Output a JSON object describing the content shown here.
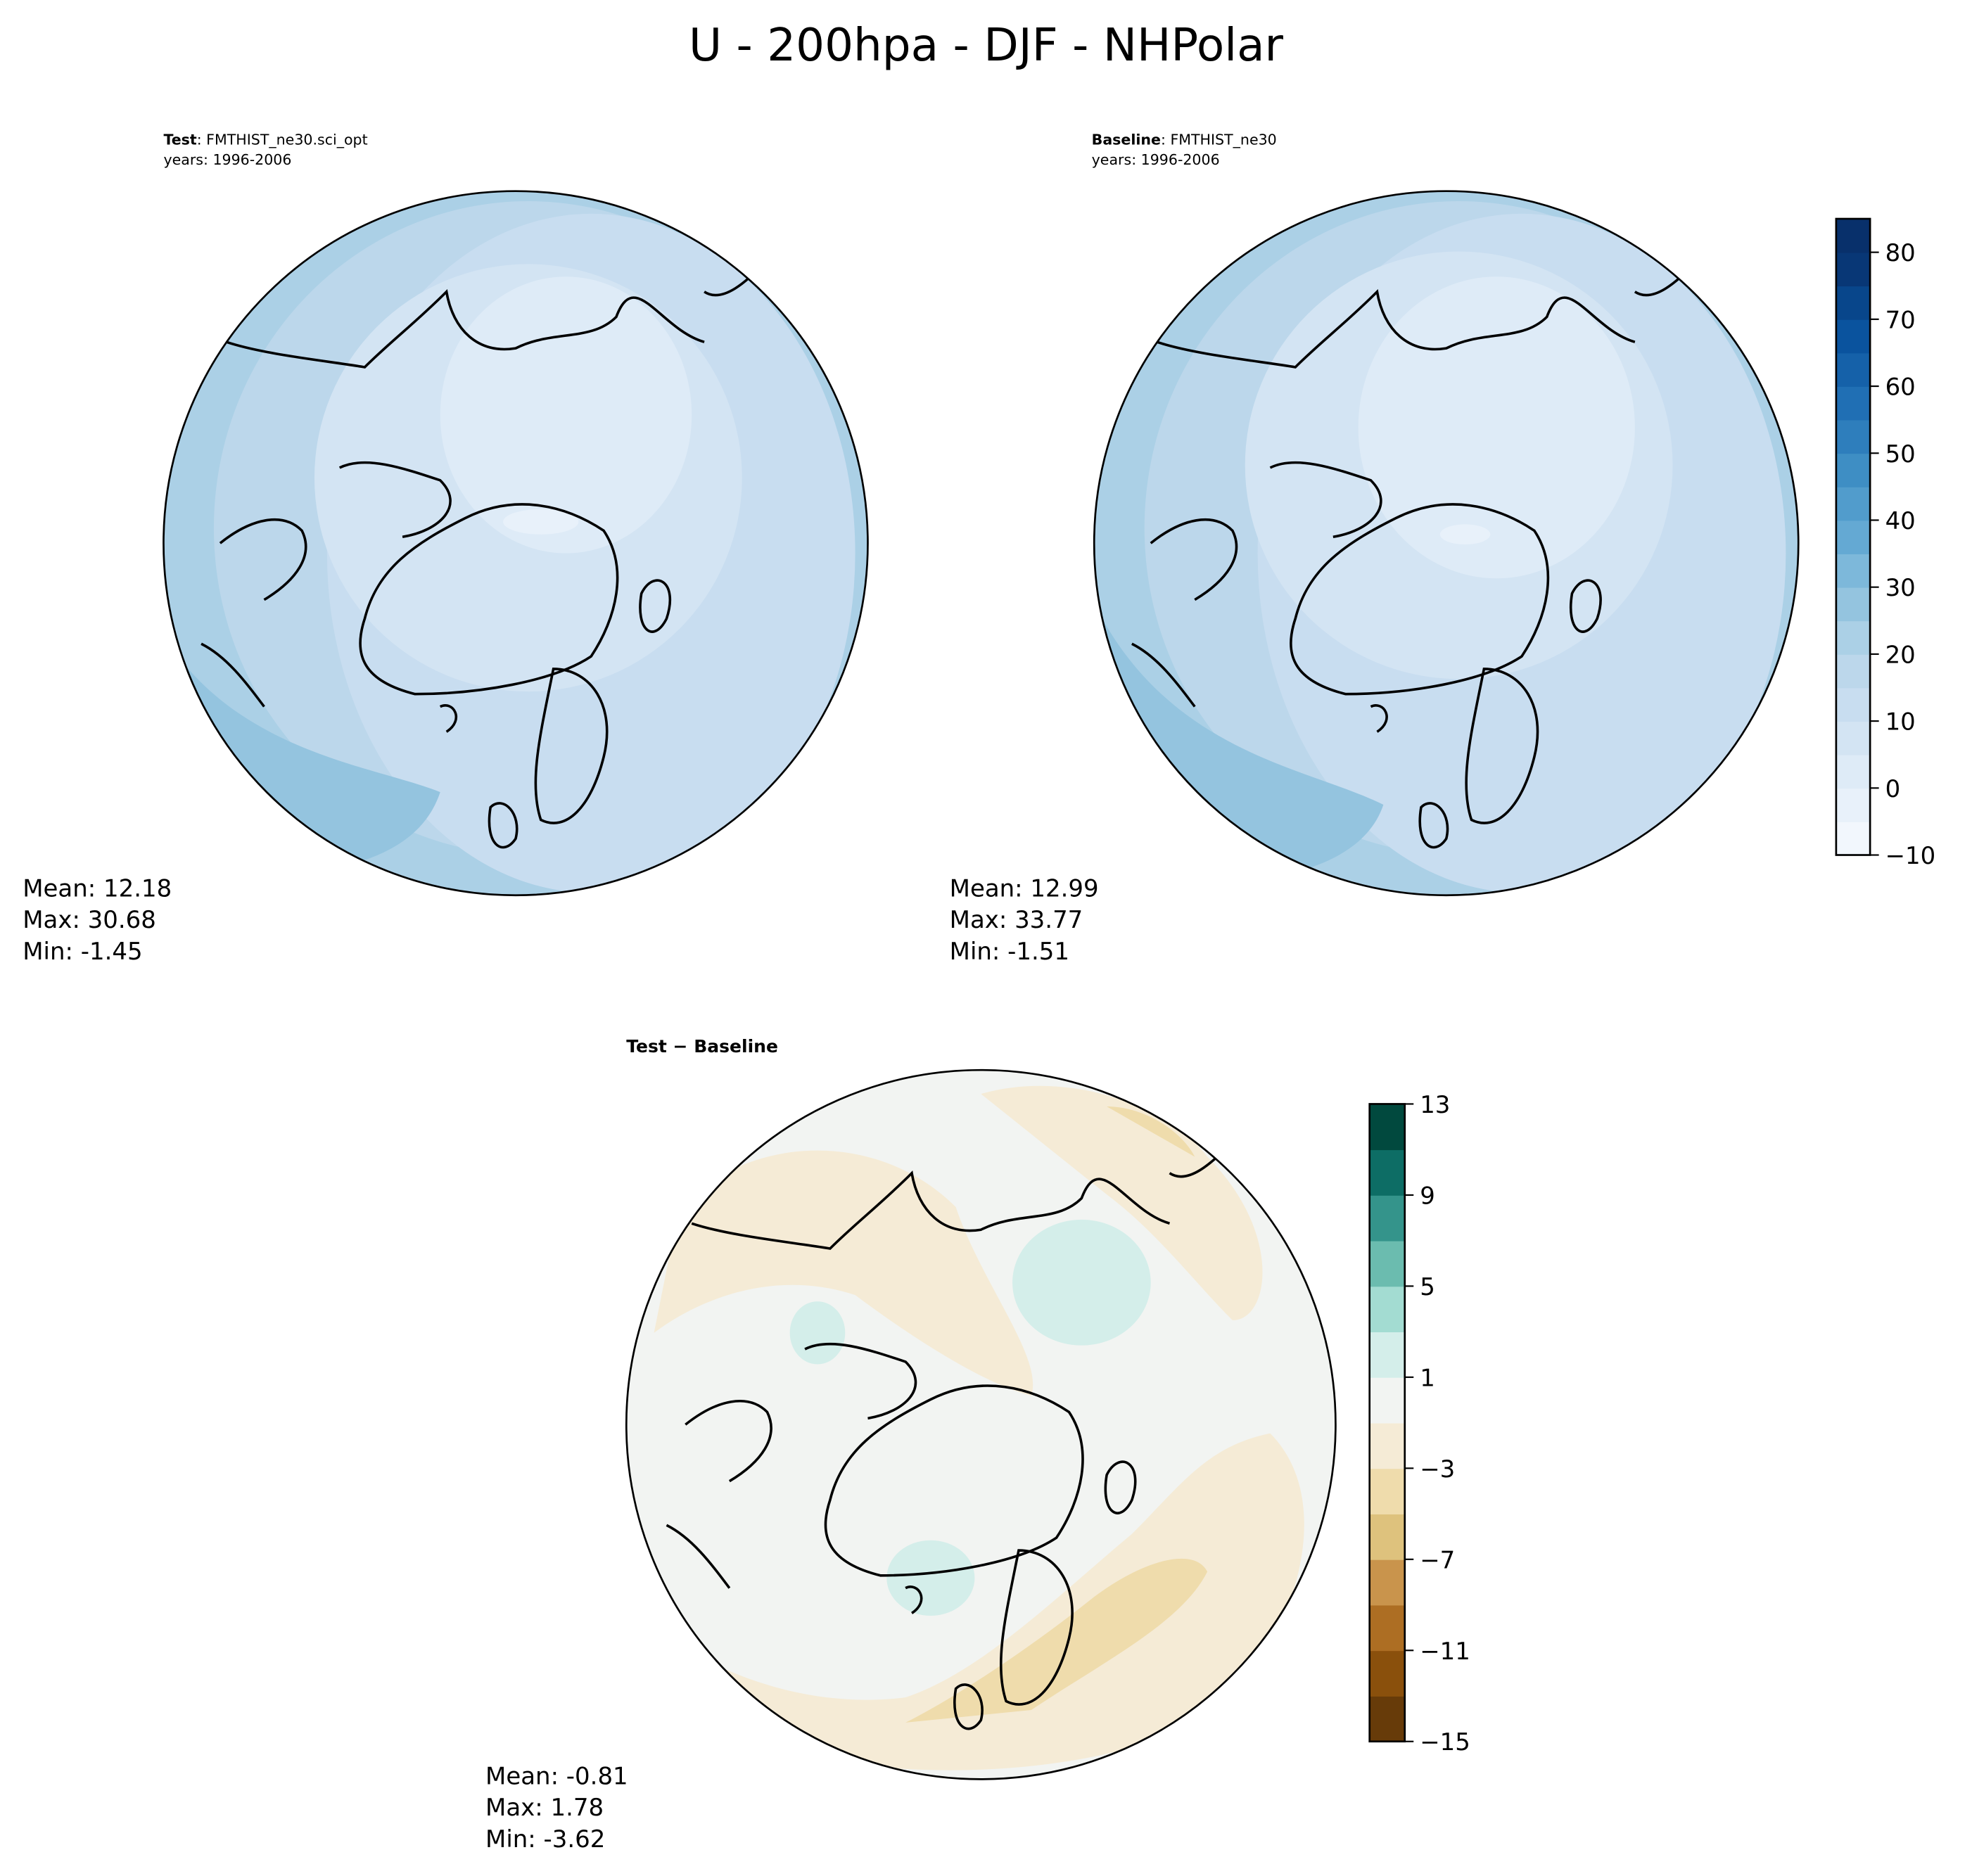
{
  "chart_data": {
    "title": "U - 200hpa - DJF - NHPolar",
    "panels": [
      {
        "type": "map-contour",
        "projection": "north-polar-stereographic",
        "title_bold": "Test",
        "title_rest": ": FMTHIST_ne30.sci_opt",
        "subtitle": "years: 1996-2006",
        "stats": {
          "mean": "Mean: 12.18",
          "max": "Max: 30.68",
          "min": "Min: -1.45"
        }
      },
      {
        "type": "map-contour",
        "projection": "north-polar-stereographic",
        "title_bold": "Baseline",
        "title_rest": ": FMTHIST_ne30",
        "subtitle": "years: 1996-2006",
        "stats": {
          "mean": "Mean: 12.99",
          "max": "Max: 33.77",
          "min": "Min: -1.51"
        }
      },
      {
        "type": "map-contour",
        "projection": "north-polar-stereographic",
        "title_bold": "Test − Baseline",
        "title_rest": "",
        "subtitle": "",
        "stats": {
          "mean": "Mean: -0.81",
          "max": "Max:  1.78",
          "min": "Min: -3.62"
        }
      }
    ],
    "colorbars": [
      {
        "colormap": "Blues",
        "range": [
          -10,
          85
        ],
        "step": 5,
        "ticks": [
          -10,
          0,
          10,
          20,
          30,
          40,
          50,
          60,
          70,
          80
        ],
        "tick_labels": [
          "−10",
          "0",
          "10",
          "20",
          "30",
          "40",
          "50",
          "60",
          "70",
          "80"
        ],
        "colors": [
          "#f2f7fd",
          "#e8f1fa",
          "#deebf7",
          "#d3e4f3",
          "#c8ddf0",
          "#bcd7eb",
          "#abd0e6",
          "#94c4df",
          "#7db8da",
          "#64a9d3",
          "#519ccc",
          "#3e8ec4",
          "#2e7ebc",
          "#206fb4",
          "#1561a9",
          "#0a539e",
          "#08468b",
          "#083776",
          "#08306b"
        ]
      },
      {
        "colormap": "BrBG",
        "range": [
          -15,
          13
        ],
        "step": 2,
        "ticks": [
          -15,
          -11,
          -7,
          -3,
          1,
          5,
          9,
          13
        ],
        "tick_labels": [
          "−15",
          "−11",
          "−7",
          "−3",
          "1",
          "5",
          "9",
          "13"
        ],
        "colors": [
          "#673b09",
          "#8a500c",
          "#ad6e23",
          "#c9944c",
          "#dec27d",
          "#efdcac",
          "#f5ebd6",
          "#f2f4f2",
          "#d4eeea",
          "#a3dcd2",
          "#6bbcaf",
          "#34948b",
          "#0d6d65",
          "#01493e"
        ]
      }
    ]
  }
}
